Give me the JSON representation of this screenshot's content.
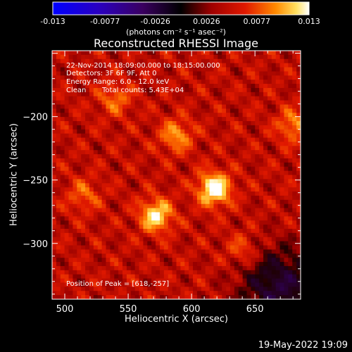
{
  "colorbar": {
    "ticks": [
      "-0.013",
      "-0.0077",
      "-0.0026",
      "0.0026",
      "0.0077",
      "0.013"
    ],
    "unit_label": "(photons cm⁻² s⁻¹ asec⁻²)"
  },
  "plot": {
    "title": "Reconstructed RHESSI Image",
    "xlabel": "Heliocentric X (arcsec)",
    "ylabel": "Heliocentric Y (arcsec)"
  },
  "annotations": {
    "time_range": "22-Nov-2014 18:09:00.000 to 18:15:00.000",
    "detectors": "Detectors: 3F 6F 9F, Att 0",
    "energy": "Energy Range: 6.0 - 12.0 keV",
    "clean_label": "Clean",
    "total_counts": "Total counts: 5.43E+04",
    "peak": "Position of Peak = [618,-257]"
  },
  "footer": {
    "timestamp": "19-May-2022 19:09"
  },
  "chart_data": {
    "type": "heatmap",
    "title": "Reconstructed RHESSI Image",
    "xlabel": "Heliocentric X (arcsec)",
    "ylabel": "Heliocentric Y (arcsec)",
    "xlim": [
      490,
      686
    ],
    "ylim": [
      -344,
      -148
    ],
    "x_ticks": [
      500,
      550,
      600,
      650
    ],
    "y_ticks": [
      -200,
      -250,
      -300
    ],
    "colorbar_range": [
      -0.013,
      0.013
    ],
    "colorbar_ticks": [
      -0.013,
      -0.0077,
      -0.0026,
      0.0026,
      0.0077,
      0.013
    ],
    "colormap": "RHESSI blue-purple-red-yellow-white",
    "sources": [
      {
        "x": 618,
        "y": -257,
        "intensity": 1.0
      },
      {
        "x": 572,
        "y": -278,
        "intensity": 0.82
      },
      {
        "x": 588,
        "y": -215,
        "intensity": 0.55
      },
      {
        "x": 680,
        "y": -207,
        "intensity": 0.5
      },
      {
        "x": 540,
        "y": -186,
        "intensity": 0.42
      },
      {
        "x": 515,
        "y": -262,
        "intensity": 0.38
      },
      {
        "x": 640,
        "y": -305,
        "intensity": 0.35
      }
    ],
    "peak_position": [
      618,
      -257
    ],
    "total_counts": 54300
  }
}
